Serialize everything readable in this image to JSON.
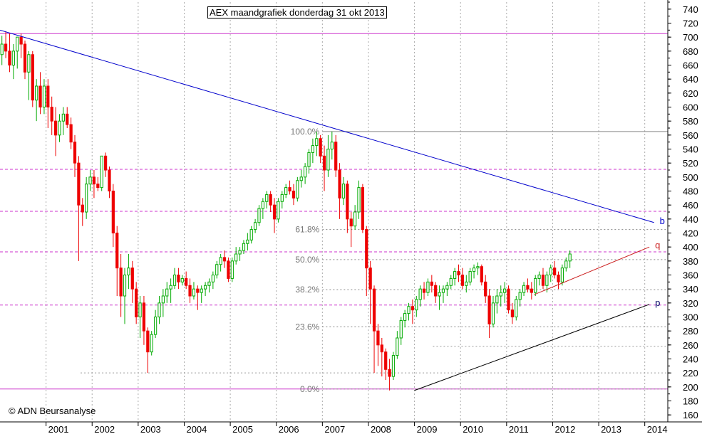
{
  "title": "AEX maandgrafiek donderdag 31 okt 2013",
  "copyright": "© ADN Beursanalyse",
  "chart_data": {
    "type": "candlestick",
    "title": "AEX maandgrafiek donderdag 31 okt 2013",
    "ylim": [
      150,
      750
    ],
    "y_ticks": [
      160,
      180,
      200,
      220,
      240,
      260,
      280,
      300,
      320,
      340,
      360,
      380,
      400,
      420,
      440,
      460,
      480,
      500,
      520,
      540,
      560,
      580,
      600,
      620,
      640,
      660,
      680,
      700,
      720,
      740
    ],
    "x_range": [
      2000.0,
      2014.5
    ],
    "x_ticks": [
      {
        "value": 2001,
        "label": "2001"
      },
      {
        "value": 2002,
        "label": "2002"
      },
      {
        "value": 2003,
        "label": "2003"
      },
      {
        "value": 2004,
        "label": "2004"
      },
      {
        "value": 2005,
        "label": "2005"
      },
      {
        "value": 2006,
        "label": "2006"
      },
      {
        "value": 2007,
        "label": "2007"
      },
      {
        "value": 2008,
        "label": "2008"
      },
      {
        "value": 2009,
        "label": "2009"
      },
      {
        "value": 2010,
        "label": "2010"
      },
      {
        "value": 2011,
        "label": "2011"
      },
      {
        "value": 2012,
        "label": "2012"
      },
      {
        "value": 2013,
        "label": "2013"
      },
      {
        "value": 2014,
        "label": "2014"
      }
    ],
    "horizontal_lines": [
      {
        "y": 705,
        "color": "#cc33cc",
        "style": "solid"
      },
      {
        "y": 197,
        "color": "#cc33cc",
        "style": "solid"
      },
      {
        "y": 511,
        "color": "#cc33cc",
        "style": "dashed"
      },
      {
        "y": 451,
        "color": "#cc33cc",
        "style": "dashed"
      },
      {
        "y": 393,
        "color": "#cc33cc",
        "style": "dashed"
      },
      {
        "y": 317,
        "color": "#cc33cc",
        "style": "dashed"
      }
    ],
    "fibonacci": {
      "x_start": 2007.0,
      "levels": [
        {
          "label": "100.0%",
          "y": 565
        },
        {
          "label": "61.8%",
          "y": 425
        },
        {
          "label": "50.0%",
          "y": 382
        },
        {
          "label": "38.2%",
          "y": 339
        },
        {
          "label": "23.6%",
          "y": 286
        },
        {
          "label": "0.0%",
          "y": 197
        }
      ],
      "extra_dashed": [
        {
          "y": 258,
          "x_start": 2009.4
        },
        {
          "y": 220,
          "x_start": 2001.75
        }
      ]
    },
    "trendlines": [
      {
        "name": "b",
        "from": [
          2000.0,
          710
        ],
        "to": [
          2014.2,
          435
        ],
        "color": "#0000cc",
        "label_color": "#0000cc"
      },
      {
        "name": "q",
        "from": [
          2011.6,
          332
        ],
        "to": [
          2014.1,
          400
        ],
        "color": "#cc2222",
        "label_color": "#cc2222"
      },
      {
        "name": "p",
        "from": [
          2009.0,
          195
        ],
        "to": [
          2014.1,
          318
        ],
        "color": "#000000",
        "label_color": "#000066"
      }
    ],
    "ohlc_monthly_start": "2000-01",
    "ohlc": [
      [
        675,
        702,
        660,
        690
      ],
      [
        690,
        708,
        670,
        680
      ],
      [
        680,
        705,
        650,
        660
      ],
      [
        660,
        690,
        640,
        680
      ],
      [
        680,
        700,
        655,
        700
      ],
      [
        700,
        705,
        670,
        690
      ],
      [
        690,
        695,
        640,
        650
      ],
      [
        650,
        680,
        610,
        675
      ],
      [
        675,
        680,
        600,
        610
      ],
      [
        610,
        640,
        580,
        630
      ],
      [
        630,
        650,
        590,
        600
      ],
      [
        600,
        640,
        590,
        630
      ],
      [
        630,
        640,
        570,
        600
      ],
      [
        600,
        615,
        560,
        580
      ],
      [
        580,
        600,
        530,
        560
      ],
      [
        560,
        590,
        550,
        580
      ],
      [
        580,
        600,
        560,
        590
      ],
      [
        590,
        600,
        570,
        575
      ],
      [
        575,
        585,
        540,
        550
      ],
      [
        550,
        560,
        500,
        520
      ],
      [
        520,
        530,
        380,
        460
      ],
      [
        460,
        470,
        430,
        450
      ],
      [
        450,
        500,
        440,
        490
      ],
      [
        490,
        510,
        480,
        500
      ],
      [
        500,
        510,
        470,
        490
      ],
      [
        490,
        500,
        480,
        485
      ],
      [
        485,
        530,
        480,
        530
      ],
      [
        530,
        535,
        500,
        510
      ],
      [
        510,
        515,
        470,
        480
      ],
      [
        480,
        490,
        400,
        420
      ],
      [
        420,
        430,
        330,
        370
      ],
      [
        370,
        390,
        300,
        330
      ],
      [
        330,
        370,
        290,
        360
      ],
      [
        360,
        390,
        340,
        370
      ],
      [
        370,
        380,
        320,
        340
      ],
      [
        340,
        350,
        290,
        300
      ],
      [
        300,
        330,
        270,
        320
      ],
      [
        320,
        330,
        260,
        280
      ],
      [
        280,
        285,
        220,
        250
      ],
      [
        250,
        280,
        245,
        275
      ],
      [
        275,
        310,
        270,
        300
      ],
      [
        300,
        330,
        290,
        320
      ],
      [
        320,
        340,
        300,
        330
      ],
      [
        330,
        350,
        320,
        340
      ],
      [
        340,
        355,
        320,
        345
      ],
      [
        345,
        370,
        340,
        360
      ],
      [
        360,
        370,
        340,
        350
      ],
      [
        350,
        360,
        345,
        355
      ],
      [
        355,
        365,
        340,
        345
      ],
      [
        345,
        355,
        320,
        330
      ],
      [
        330,
        350,
        325,
        340
      ],
      [
        340,
        345,
        310,
        335
      ],
      [
        335,
        345,
        320,
        340
      ],
      [
        340,
        350,
        330,
        345
      ],
      [
        345,
        355,
        335,
        350
      ],
      [
        350,
        365,
        340,
        360
      ],
      [
        360,
        380,
        355,
        375
      ],
      [
        375,
        390,
        365,
        385
      ],
      [
        385,
        395,
        370,
        380
      ],
      [
        380,
        385,
        350,
        355
      ],
      [
        355,
        385,
        350,
        380
      ],
      [
        380,
        400,
        375,
        390
      ],
      [
        390,
        400,
        380,
        395
      ],
      [
        395,
        410,
        390,
        405
      ],
      [
        405,
        420,
        395,
        410
      ],
      [
        410,
        430,
        405,
        425
      ],
      [
        425,
        440,
        420,
        435
      ],
      [
        435,
        460,
        430,
        455
      ],
      [
        455,
        470,
        440,
        465
      ],
      [
        465,
        480,
        455,
        475
      ],
      [
        475,
        480,
        450,
        460
      ],
      [
        460,
        470,
        420,
        440
      ],
      [
        440,
        470,
        435,
        465
      ],
      [
        465,
        480,
        455,
        475
      ],
      [
        475,
        490,
        470,
        485
      ],
      [
        485,
        495,
        475,
        480
      ],
      [
        480,
        490,
        460,
        470
      ],
      [
        470,
        500,
        465,
        495
      ],
      [
        495,
        510,
        485,
        500
      ],
      [
        500,
        520,
        490,
        515
      ],
      [
        515,
        540,
        505,
        535
      ],
      [
        535,
        555,
        520,
        545
      ],
      [
        545,
        565,
        530,
        555
      ],
      [
        555,
        560,
        520,
        530
      ],
      [
        530,
        545,
        480,
        510
      ],
      [
        510,
        560,
        500,
        540
      ],
      [
        540,
        565,
        525,
        550
      ],
      [
        550,
        560,
        500,
        510
      ],
      [
        510,
        520,
        440,
        470
      ],
      [
        470,
        500,
        460,
        490
      ],
      [
        490,
        495,
        420,
        440
      ],
      [
        440,
        450,
        400,
        430
      ],
      [
        430,
        460,
        425,
        450
      ],
      [
        450,
        495,
        440,
        485
      ],
      [
        485,
        490,
        420,
        425
      ],
      [
        425,
        430,
        330,
        370
      ],
      [
        370,
        380,
        290,
        340
      ],
      [
        340,
        345,
        220,
        280
      ],
      [
        280,
        290,
        230,
        260
      ],
      [
        260,
        270,
        215,
        250
      ],
      [
        250,
        255,
        210,
        225
      ],
      [
        225,
        240,
        195,
        215
      ],
      [
        215,
        250,
        210,
        245
      ],
      [
        245,
        280,
        240,
        270
      ],
      [
        270,
        300,
        260,
        295
      ],
      [
        295,
        310,
        285,
        305
      ],
      [
        305,
        320,
        295,
        315
      ],
      [
        315,
        325,
        290,
        310
      ],
      [
        310,
        330,
        300,
        325
      ],
      [
        325,
        345,
        315,
        340
      ],
      [
        340,
        350,
        325,
        335
      ],
      [
        335,
        355,
        330,
        350
      ],
      [
        350,
        360,
        335,
        345
      ],
      [
        345,
        350,
        320,
        330
      ],
      [
        330,
        345,
        310,
        335
      ],
      [
        335,
        345,
        320,
        340
      ],
      [
        340,
        350,
        330,
        345
      ],
      [
        345,
        360,
        340,
        355
      ],
      [
        355,
        370,
        345,
        365
      ],
      [
        365,
        375,
        350,
        360
      ],
      [
        360,
        370,
        340,
        345
      ],
      [
        345,
        360,
        335,
        350
      ],
      [
        350,
        370,
        345,
        365
      ],
      [
        365,
        375,
        355,
        370
      ],
      [
        370,
        378,
        360,
        372
      ],
      [
        372,
        375,
        345,
        350
      ],
      [
        350,
        360,
        320,
        330
      ],
      [
        330,
        340,
        270,
        290
      ],
      [
        290,
        330,
        285,
        320
      ],
      [
        320,
        340,
        305,
        330
      ],
      [
        330,
        345,
        315,
        335
      ],
      [
        335,
        350,
        320,
        340
      ],
      [
        340,
        345,
        305,
        310
      ],
      [
        310,
        320,
        290,
        300
      ],
      [
        300,
        330,
        295,
        325
      ],
      [
        325,
        340,
        315,
        335
      ],
      [
        335,
        350,
        330,
        345
      ],
      [
        345,
        355,
        335,
        340
      ],
      [
        340,
        350,
        325,
        335
      ],
      [
        335,
        360,
        330,
        355
      ],
      [
        355,
        365,
        345,
        360
      ],
      [
        360,
        370,
        340,
        345
      ],
      [
        345,
        365,
        335,
        360
      ],
      [
        360,
        375,
        350,
        370
      ],
      [
        370,
        380,
        355,
        360
      ],
      [
        360,
        365,
        340,
        350
      ],
      [
        350,
        375,
        345,
        370
      ],
      [
        370,
        385,
        365,
        380
      ],
      [
        380,
        395,
        370,
        390
      ]
    ]
  }
}
